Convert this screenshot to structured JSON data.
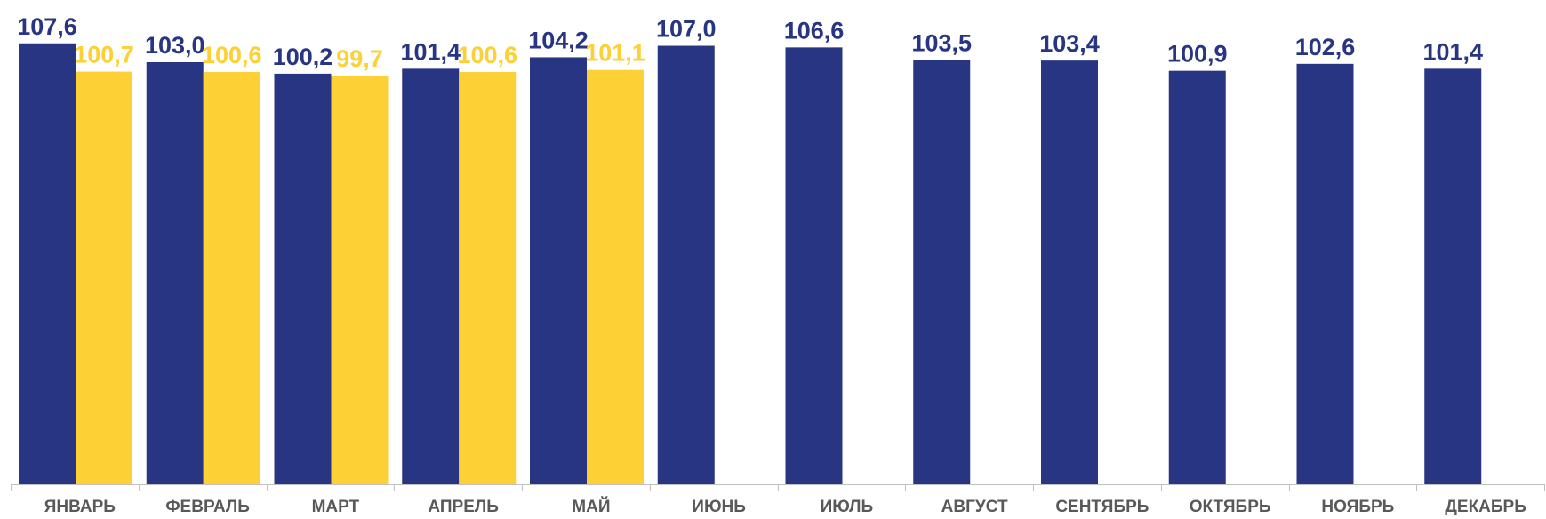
{
  "chart_data": {
    "type": "bar",
    "categories": [
      "ЯНВАРЬ",
      "ФЕВРАЛЬ",
      "МАРТ",
      "АПРЕЛЬ",
      "МАЙ",
      "ИЮНЬ",
      "ИЮЛЬ",
      "АВГУСТ",
      "СЕНТЯБРЬ",
      "ОКТЯБРЬ",
      "НОЯБРЬ",
      "ДЕКАБРЬ"
    ],
    "series": [
      {
        "values": [
          107.6,
          103.0,
          100.2,
          101.4,
          104.2,
          107.0,
          106.6,
          103.5,
          103.4,
          100.9,
          102.6,
          101.4
        ],
        "labels": [
          "107,6",
          "103,0",
          "100,2",
          "101,4",
          "104,2",
          "107,0",
          "106,6",
          "103,5",
          "103,4",
          "100,9",
          "102,6",
          "101,4"
        ],
        "color": "#283583"
      },
      {
        "values": [
          100.7,
          100.6,
          99.7,
          100.6,
          101.1,
          null,
          null,
          null,
          null,
          null,
          null,
          null
        ],
        "labels": [
          "100,7",
          "100,6",
          "99,7",
          "100,6",
          "101,1",
          null,
          null,
          null,
          null,
          null,
          null,
          null
        ],
        "color": "#FDD035"
      }
    ],
    "ylim": [
      0,
      109.5
    ],
    "grid": false,
    "legend": "none",
    "title": "",
    "xlabel": "",
    "ylabel": ""
  }
}
